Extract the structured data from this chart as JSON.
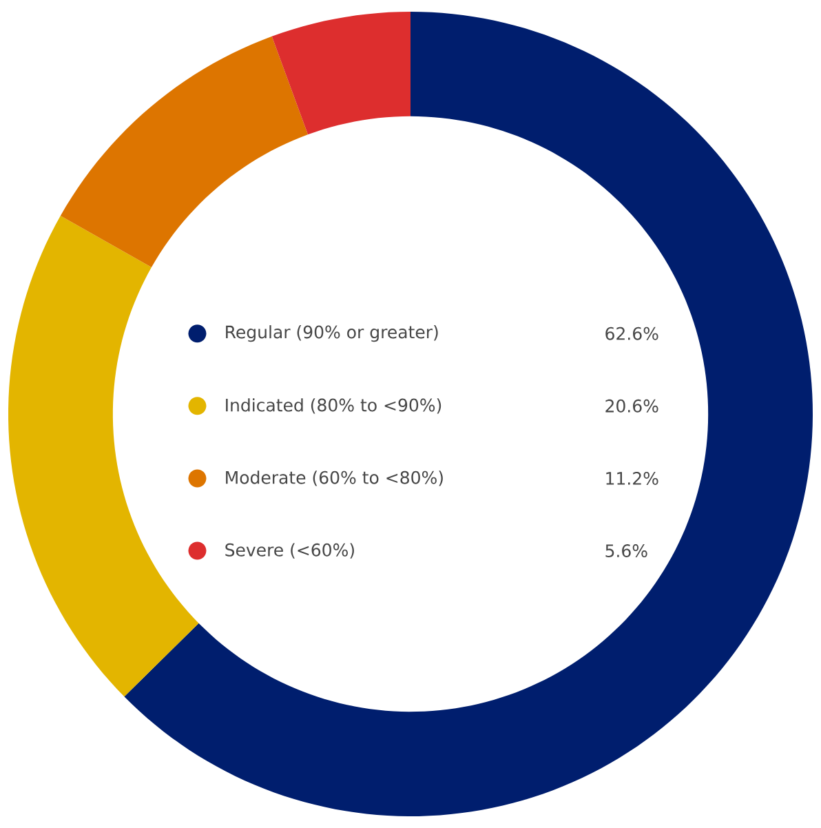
{
  "chart_data": {
    "type": "donut",
    "categories": [
      "Regular (90% or greater)",
      "Indicated (80% to <90%)",
      "Moderate (60% to <80%)",
      "Severe (<60%)"
    ],
    "values": [
      62.6,
      20.6,
      11.2,
      5.6
    ],
    "colors": [
      "#001e6e",
      "#e3b500",
      "#dd7500",
      "#dd2e2e"
    ],
    "value_labels": [
      "62.6%",
      "20.6%",
      "11.2%",
      "5.6%"
    ],
    "legend": "center"
  }
}
